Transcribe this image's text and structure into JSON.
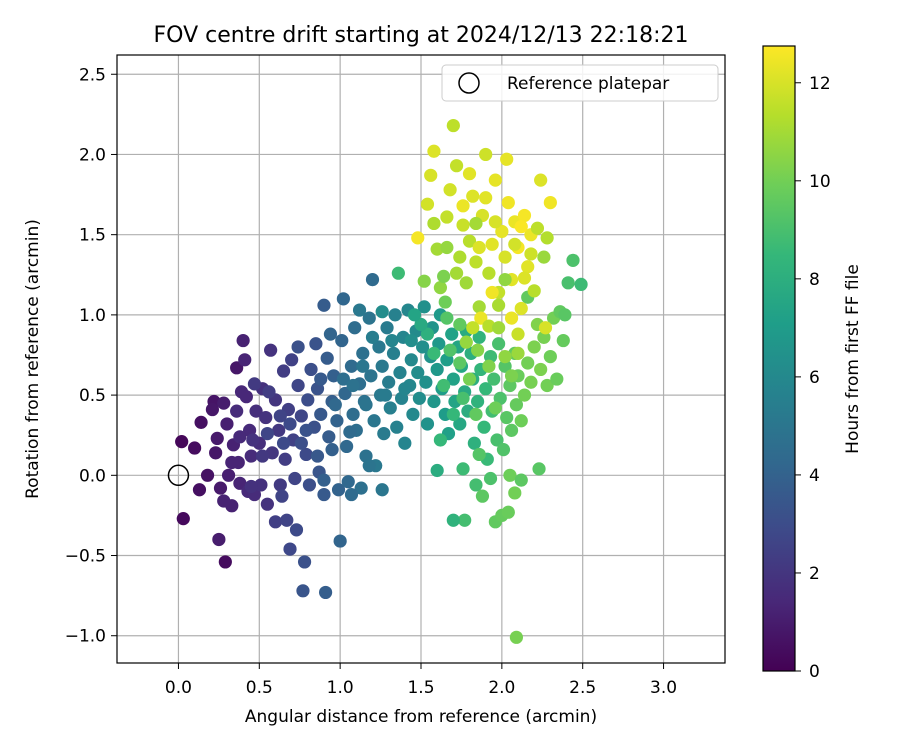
{
  "chart_data": {
    "type": "scatter",
    "title": "FOV centre drift starting at 2024/12/13 22:18:21",
    "xlabel": "Angular distance from reference (arcmin)",
    "ylabel": "Rotation from reference (arcmin)",
    "xlim": [
      -0.38,
      3.38
    ],
    "ylim": [
      -1.17,
      2.62
    ],
    "xticks": [
      "0.0",
      "0.5",
      "1.0",
      "1.5",
      "2.0",
      "2.5",
      "3.0"
    ],
    "xtick_values": [
      0,
      0.5,
      1.0,
      1.5,
      2.0,
      2.5,
      3.0
    ],
    "yticks": [
      "−1.0",
      "−0.5",
      "0.0",
      "0.5",
      "1.0",
      "1.5",
      "2.0",
      "2.5"
    ],
    "ytick_values": [
      -1.0,
      -0.5,
      0,
      0.5,
      1.0,
      1.5,
      2.0,
      2.5
    ],
    "grid": true,
    "legend": {
      "placement": "top-right",
      "entries": [
        "Reference platepar"
      ]
    },
    "reference_point": {
      "x": 0.0,
      "y": 0.0,
      "marker": "open-circle"
    },
    "colorbar": {
      "label": "Hours from first FF file",
      "range": [
        0,
        12.75
      ],
      "ticks": [
        "0",
        "2",
        "4",
        "6",
        "8",
        "10",
        "12"
      ],
      "tick_values": [
        0,
        2,
        4,
        6,
        8,
        10,
        12
      ],
      "colormap": "viridis",
      "colors": [
        "#440154",
        "#482878",
        "#3e4989",
        "#31688e",
        "#26828e",
        "#1f9e89",
        "#35b779",
        "#6ece58",
        "#b5de2b",
        "#fde725"
      ]
    },
    "points": [
      [
        0.02,
        0.21,
        0.2
      ],
      [
        0.03,
        -0.27,
        0.3
      ],
      [
        0.1,
        0.17,
        0.4
      ],
      [
        0.14,
        0.33,
        0.5
      ],
      [
        0.13,
        -0.09,
        0.5
      ],
      [
        0.18,
        0.0,
        0.6
      ],
      [
        0.22,
        0.46,
        0.7
      ],
      [
        0.21,
        0.41,
        0.8
      ],
      [
        0.23,
        0.14,
        0.8
      ],
      [
        0.24,
        0.23,
        0.9
      ],
      [
        0.26,
        -0.08,
        0.9
      ],
      [
        0.25,
        -0.4,
        1.0
      ],
      [
        0.29,
        -0.54,
        0.4
      ],
      [
        0.28,
        0.45,
        1.0
      ],
      [
        0.3,
        0.32,
        1.1
      ],
      [
        0.31,
        0.0,
        1.1
      ],
      [
        0.33,
        -0.19,
        1.2
      ],
      [
        0.34,
        0.19,
        1.2
      ],
      [
        0.36,
        0.67,
        0.8
      ],
      [
        0.37,
        0.08,
        1.3
      ],
      [
        0.38,
        -0.05,
        1.3
      ],
      [
        0.39,
        0.52,
        1.4
      ],
      [
        0.4,
        0.84,
        1.2
      ],
      [
        0.41,
        0.72,
        1.3
      ],
      [
        0.42,
        0.49,
        1.4
      ],
      [
        0.43,
        -0.1,
        1.5
      ],
      [
        0.44,
        0.28,
        1.5
      ],
      [
        0.45,
        0.12,
        1.6
      ],
      [
        0.47,
        -0.12,
        1.6
      ],
      [
        0.48,
        0.4,
        1.7
      ],
      [
        0.5,
        0.2,
        1.7
      ],
      [
        0.51,
        -0.06,
        1.8
      ],
      [
        0.52,
        0.54,
        1.8
      ],
      [
        0.54,
        0.36,
        1.9
      ],
      [
        0.55,
        -0.18,
        1.9
      ],
      [
        0.57,
        0.78,
        1.9
      ],
      [
        0.58,
        0.14,
        2.0
      ],
      [
        0.6,
        -0.29,
        2.4
      ],
      [
        0.6,
        0.47,
        2.0
      ],
      [
        0.62,
        0.28,
        2.1
      ],
      [
        0.63,
        -0.06,
        2.2
      ],
      [
        0.65,
        0.65,
        2.3
      ],
      [
        0.66,
        0.1,
        2.3
      ],
      [
        0.67,
        -0.28,
        2.6
      ],
      [
        0.68,
        0.41,
        2.4
      ],
      [
        0.69,
        -0.46,
        2.8
      ],
      [
        0.7,
        0.72,
        2.5
      ],
      [
        0.71,
        0.22,
        2.5
      ],
      [
        0.72,
        -0.02,
        2.6
      ],
      [
        0.73,
        -0.34,
        2.9
      ],
      [
        0.74,
        0.56,
        2.7
      ],
      [
        0.76,
        0.37,
        2.7
      ],
      [
        0.77,
        -0.72,
        3.4
      ],
      [
        0.78,
        -0.54,
        3.2
      ],
      [
        0.79,
        0.13,
        2.9
      ],
      [
        0.8,
        0.47,
        3.0
      ],
      [
        0.81,
        -0.06,
        3.1
      ],
      [
        0.82,
        0.66,
        3.1
      ],
      [
        0.84,
        0.3,
        3.2
      ],
      [
        0.85,
        0.82,
        3.3
      ],
      [
        0.86,
        0.54,
        3.3
      ],
      [
        0.87,
        0.02,
        3.4
      ],
      [
        0.88,
        0.38,
        3.5
      ],
      [
        0.9,
        1.06,
        3.7
      ],
      [
        0.9,
        -0.12,
        3.6
      ],
      [
        0.91,
        -0.73,
        3.8
      ],
      [
        0.92,
        0.73,
        3.7
      ],
      [
        0.93,
        0.24,
        3.7
      ],
      [
        0.95,
        0.46,
        3.8
      ],
      [
        0.96,
        0.62,
        3.9
      ],
      [
        0.98,
        0.34,
        4.0
      ],
      [
        0.99,
        -0.09,
        4.0
      ],
      [
        1.0,
        -0.41,
        4.1
      ],
      [
        1.01,
        0.84,
        4.1
      ],
      [
        1.02,
        1.1,
        4.2
      ],
      [
        1.03,
        0.51,
        4.2
      ],
      [
        1.04,
        0.18,
        4.3
      ],
      [
        1.05,
        -0.04,
        4.3
      ],
      [
        1.07,
        0.68,
        4.4
      ],
      [
        1.08,
        0.38,
        4.5
      ],
      [
        1.09,
        0.92,
        4.5
      ],
      [
        1.1,
        0.28,
        4.6
      ],
      [
        1.12,
        0.57,
        4.6
      ],
      [
        1.13,
        -0.08,
        4.7
      ],
      [
        1.14,
        0.76,
        4.7
      ],
      [
        1.15,
        0.46,
        4.8
      ],
      [
        1.16,
        0.12,
        4.8
      ],
      [
        1.18,
        0.98,
        4.9
      ],
      [
        1.19,
        0.62,
        4.9
      ],
      [
        1.2,
        1.22,
        4.4
      ],
      [
        1.21,
        0.34,
        5.0
      ],
      [
        1.22,
        0.06,
        5.1
      ],
      [
        1.24,
        0.8,
        5.1
      ],
      [
        1.25,
        0.5,
        5.2
      ],
      [
        1.26,
        0.68,
        5.2
      ],
      [
        1.27,
        0.26,
        5.3
      ],
      [
        1.29,
        0.92,
        5.3
      ],
      [
        1.3,
        0.58,
        5.4
      ],
      [
        1.31,
        0.42,
        5.5
      ],
      [
        1.33,
        0.76,
        5.5
      ],
      [
        1.34,
        1.0,
        5.6
      ],
      [
        1.35,
        0.3,
        5.6
      ],
      [
        1.37,
        0.64,
        5.7
      ],
      [
        1.38,
        0.48,
        5.7
      ],
      [
        1.39,
        0.86,
        5.8
      ],
      [
        1.4,
        0.2,
        5.8
      ],
      [
        1.42,
        1.03,
        5.9
      ],
      [
        1.43,
        0.56,
        5.9
      ],
      [
        1.44,
        0.72,
        6.0
      ],
      [
        1.45,
        0.38,
        6.0
      ],
      [
        1.47,
        0.9,
        6.1
      ],
      [
        1.48,
        0.64,
        6.2
      ],
      [
        1.49,
        0.48,
        6.2
      ],
      [
        1.51,
        0.8,
        6.3
      ],
      [
        1.52,
        1.05,
        6.4
      ],
      [
        1.53,
        0.58,
        6.4
      ],
      [
        1.54,
        0.32,
        6.5
      ],
      [
        1.56,
        0.74,
        6.5
      ],
      [
        1.57,
        0.92,
        6.6
      ],
      [
        1.58,
        0.46,
        6.7
      ],
      [
        1.6,
        0.66,
        6.8
      ],
      [
        1.61,
        0.82,
        6.8
      ],
      [
        1.62,
        1.0,
        6.9
      ],
      [
        1.63,
        0.54,
        7.0
      ],
      [
        1.65,
        0.38,
        7.0
      ],
      [
        1.66,
        0.72,
        7.1
      ],
      [
        1.67,
        0.26,
        7.2
      ],
      [
        1.69,
        0.88,
        7.3
      ],
      [
        1.7,
        0.6,
        7.3
      ],
      [
        1.71,
        0.46,
        7.4
      ],
      [
        1.73,
        0.8,
        7.5
      ],
      [
        1.74,
        0.32,
        7.6
      ],
      [
        1.75,
        0.68,
        7.6
      ],
      [
        1.77,
        0.52,
        7.7
      ],
      [
        1.78,
        0.9,
        7.8
      ],
      [
        1.79,
        0.4,
        7.9
      ],
      [
        1.81,
        0.76,
        8.0
      ],
      [
        1.82,
        0.6,
        8.0
      ],
      [
        1.83,
        0.2,
        8.1
      ],
      [
        1.85,
        0.46,
        8.2
      ],
      [
        1.86,
        0.86,
        8.3
      ],
      [
        1.87,
        0.66,
        8.4
      ],
      [
        1.89,
        0.3,
        8.5
      ],
      [
        1.9,
        0.54,
        8.5
      ],
      [
        1.91,
        0.1,
        8.6
      ],
      [
        1.93,
        0.74,
        8.7
      ],
      [
        1.94,
        0.4,
        8.8
      ],
      [
        1.95,
        0.6,
        8.9
      ],
      [
        1.97,
        0.22,
        9.0
      ],
      [
        1.98,
        0.82,
        9.0
      ],
      [
        1.99,
        0.48,
        9.1
      ],
      [
        2.01,
        0.16,
        9.2
      ],
      [
        2.02,
        0.68,
        9.3
      ],
      [
        2.03,
        0.36,
        9.4
      ],
      [
        2.05,
        0.56,
        9.5
      ],
      [
        2.06,
        0.28,
        9.5
      ],
      [
        2.08,
        0.76,
        9.6
      ],
      [
        2.09,
        0.44,
        9.7
      ],
      [
        2.1,
        0.62,
        9.8
      ],
      [
        2.12,
        0.34,
        9.9
      ],
      [
        2.14,
        0.5,
        10.0
      ],
      [
        2.16,
        0.7,
        10.0
      ],
      [
        2.18,
        0.58,
        10.1
      ],
      [
        2.2,
        0.8,
        10.2
      ],
      [
        2.22,
        0.94,
        10.3
      ],
      [
        2.24,
        0.66,
        10.2
      ],
      [
        2.26,
        0.86,
        10.1
      ],
      [
        2.28,
        0.56,
        10.0
      ],
      [
        2.3,
        0.74,
        9.9
      ],
      [
        2.32,
        0.98,
        10.0
      ],
      [
        2.34,
        0.6,
        9.8
      ],
      [
        2.36,
        1.02,
        9.6
      ],
      [
        2.39,
        1.0,
        9.4
      ],
      [
        2.41,
        1.2,
        9.0
      ],
      [
        2.44,
        1.34,
        9.1
      ],
      [
        2.49,
        1.19,
        8.7
      ],
      [
        2.38,
        0.84,
        9.7
      ],
      [
        2.16,
        1.11,
        9.6
      ],
      [
        1.6,
        0.03,
        7.9
      ],
      [
        1.62,
        0.22,
        8.5
      ],
      [
        1.76,
        0.04,
        8.7
      ],
      [
        1.84,
        -0.06,
        8.9
      ],
      [
        1.86,
        0.13,
        9.3
      ],
      [
        1.88,
        -0.13,
        9.5
      ],
      [
        1.93,
        -0.02,
        9.1
      ],
      [
        1.96,
        -0.29,
        9.6
      ],
      [
        2.0,
        -0.25,
        9.7
      ],
      [
        2.04,
        -0.23,
        9.8
      ],
      [
        2.05,
        0.0,
        9.9
      ],
      [
        2.08,
        -0.11,
        10.0
      ],
      [
        2.12,
        -0.03,
        9.5
      ],
      [
        2.23,
        0.04,
        9.4
      ],
      [
        2.09,
        -1.01,
        10.1
      ],
      [
        1.77,
        -0.28,
        8.9
      ],
      [
        1.7,
        -0.28,
        8.2
      ],
      [
        1.65,
        1.08,
        9.9
      ],
      [
        1.62,
        1.17,
        10.6
      ],
      [
        1.6,
        1.41,
        11.0
      ],
      [
        1.58,
        1.57,
        11.2
      ],
      [
        1.56,
        1.87,
        12.0
      ],
      [
        1.58,
        2.02,
        12.1
      ],
      [
        1.54,
        1.69,
        11.9
      ],
      [
        1.48,
        1.48,
        12.6
      ],
      [
        1.66,
        1.61,
        11.6
      ],
      [
        1.68,
        1.78,
        11.9
      ],
      [
        1.7,
        2.18,
        11.5
      ],
      [
        1.72,
        1.93,
        11.6
      ],
      [
        1.74,
        1.36,
        11.2
      ],
      [
        1.76,
        1.56,
        11.7
      ],
      [
        1.78,
        1.2,
        10.9
      ],
      [
        1.8,
        1.46,
        11.4
      ],
      [
        1.82,
        1.74,
        12.1
      ],
      [
        1.84,
        1.33,
        11.5
      ],
      [
        1.86,
        1.05,
        11.0
      ],
      [
        1.88,
        1.62,
        12.0
      ],
      [
        1.9,
        2.0,
        11.8
      ],
      [
        1.92,
        1.26,
        11.4
      ],
      [
        1.94,
        1.44,
        12.2
      ],
      [
        1.96,
        1.84,
        12.3
      ],
      [
        1.98,
        1.14,
        11.6
      ],
      [
        2.0,
        1.52,
        12.3
      ],
      [
        2.02,
        1.36,
        12.0
      ],
      [
        2.04,
        1.7,
        12.5
      ],
      [
        2.06,
        1.22,
        12.2
      ],
      [
        2.08,
        1.58,
        12.4
      ],
      [
        2.1,
        1.42,
        12.6
      ],
      [
        2.12,
        1.04,
        12.1
      ],
      [
        2.14,
        1.62,
        12.6
      ],
      [
        2.16,
        1.3,
        12.2
      ],
      [
        2.18,
        1.5,
        12.4
      ],
      [
        2.2,
        1.15,
        11.4
      ],
      [
        2.22,
        1.54,
        11.5
      ],
      [
        2.24,
        1.84,
        12.1
      ],
      [
        2.26,
        1.36,
        10.8
      ],
      [
        2.28,
        1.48,
        11.3
      ],
      [
        2.3,
        1.7,
        12.5
      ],
      [
        2.03,
        1.97,
        12.3
      ],
      [
        1.9,
        1.73,
        12.2
      ],
      [
        1.87,
        0.98,
        12.4
      ],
      [
        1.82,
        0.92,
        11.6
      ],
      [
        1.78,
        0.83,
        10.7
      ],
      [
        1.92,
        0.93,
        11.4
      ],
      [
        2.06,
        0.98,
        12.4
      ],
      [
        2.1,
        0.88,
        11.7
      ],
      [
        2.14,
        1.23,
        12.1
      ],
      [
        2.18,
        1.38,
        11.8
      ],
      [
        1.96,
        1.58,
        12.0
      ],
      [
        1.8,
        1.88,
        12.2
      ],
      [
        1.94,
        1.14,
        12.5
      ],
      [
        1.72,
        1.26,
        11.0
      ],
      [
        1.64,
        1.24,
        10.2
      ],
      [
        1.66,
        0.98,
        9.3
      ],
      [
        1.98,
        1.06,
        11.1
      ],
      [
        2.02,
        1.22,
        10.6
      ],
      [
        1.86,
        1.42,
        12.1
      ],
      [
        1.76,
        1.68,
        12.4
      ],
      [
        1.84,
        1.57,
        11.0
      ],
      [
        2.08,
        1.44,
        11.9
      ],
      [
        2.12,
        1.55,
        12.7
      ],
      [
        2.27,
        0.92,
        12.0
      ],
      [
        1.74,
        0.94,
        9.6
      ],
      [
        1.68,
        0.78,
        9.2
      ],
      [
        1.74,
        0.7,
        9.5
      ],
      [
        1.8,
        0.6,
        10.1
      ],
      [
        1.85,
        0.78,
        10.4
      ],
      [
        1.92,
        0.68,
        10.3
      ],
      [
        1.98,
        0.92,
        10.9
      ],
      [
        2.02,
        0.74,
        10.6
      ],
      [
        2.06,
        0.62,
        10.2
      ],
      [
        2.1,
        0.76,
        10.8
      ],
      [
        1.96,
        0.42,
        9.9
      ],
      [
        1.84,
        0.38,
        9.6
      ],
      [
        1.76,
        0.48,
        9.0
      ],
      [
        1.7,
        0.38,
        8.5
      ],
      [
        1.64,
        0.56,
        8.8
      ],
      [
        1.58,
        0.76,
        8.6
      ],
      [
        1.54,
        0.88,
        8.1
      ],
      [
        1.5,
        0.94,
        7.7
      ],
      [
        1.46,
        1.0,
        7.4
      ],
      [
        1.26,
        1.02,
        6.2
      ],
      [
        1.12,
        1.03,
        5.1
      ],
      [
        1.36,
        1.26,
        8.7
      ],
      [
        1.52,
        1.21,
        10.4
      ],
      [
        1.66,
        1.42,
        10.7
      ],
      [
        0.56,
        0.52,
        2.3
      ],
      [
        0.47,
        0.57,
        2.2
      ],
      [
        0.55,
        0.26,
        2.7
      ],
      [
        0.65,
        0.2,
        2.9
      ],
      [
        0.76,
        0.2,
        3.1
      ],
      [
        0.86,
        0.12,
        3.5
      ],
      [
        0.95,
        0.16,
        3.9
      ],
      [
        1.06,
        0.27,
        4.4
      ],
      [
        1.16,
        0.44,
        4.9
      ],
      [
        1.28,
        0.5,
        5.3
      ],
      [
        1.4,
        0.54,
        5.8
      ],
      [
        0.97,
        0.44,
        4.3
      ],
      [
        1.02,
        0.6,
        4.6
      ],
      [
        1.08,
        0.56,
        4.8
      ],
      [
        1.14,
        0.68,
        5.0
      ],
      [
        1.2,
        0.86,
        5.4
      ],
      [
        1.32,
        0.84,
        5.8
      ],
      [
        1.44,
        0.84,
        6.3
      ],
      [
        0.88,
        0.6,
        3.6
      ],
      [
        0.94,
        0.88,
        4.1
      ],
      [
        0.74,
        0.8,
        3.2
      ],
      [
        0.79,
        0.28,
        3.3
      ],
      [
        0.69,
        0.32,
        2.9
      ],
      [
        0.63,
        0.37,
        2.6
      ],
      [
        0.52,
        0.12,
        2.1
      ],
      [
        0.46,
        0.22,
        1.9
      ],
      [
        0.36,
        0.4,
        1.6
      ],
      [
        0.38,
        0.24,
        1.5
      ],
      [
        0.33,
        0.08,
        1.3
      ],
      [
        0.28,
        -0.16,
        1.2
      ],
      [
        0.45,
        -0.07,
        1.8
      ],
      [
        0.64,
        -0.13,
        2.6
      ],
      [
        0.9,
        -0.03,
        3.9
      ],
      [
        1.07,
        -0.12,
        4.4
      ],
      [
        1.18,
        0.06,
        4.9
      ],
      [
        1.26,
        -0.09,
        5.0
      ]
    ]
  }
}
